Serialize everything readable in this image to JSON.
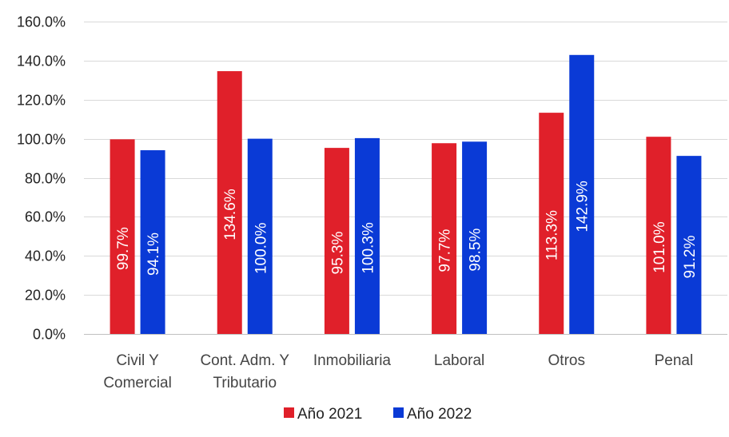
{
  "chart_data": {
    "type": "bar",
    "categories": [
      [
        "Civil Y",
        "Comercial"
      ],
      [
        "Cont. Adm. Y",
        "Tributario"
      ],
      [
        "Inmobiliaria"
      ],
      [
        "Laboral"
      ],
      [
        "Otros"
      ],
      [
        "Penal"
      ]
    ],
    "series": [
      {
        "name": "Año 2021",
        "color": "#e0202a",
        "values": [
          99.7,
          134.6,
          95.3,
          97.7,
          113.3,
          101.0
        ],
        "labels": [
          "99.7%",
          "134.6%",
          "95.3%",
          "97.7%",
          "113.3%",
          "101.0%"
        ]
      },
      {
        "name": "Año 2022",
        "color": "#0a3ad6",
        "values": [
          94.1,
          100.0,
          100.3,
          98.5,
          142.9,
          91.2
        ],
        "labels": [
          "94.1%",
          "100.0%",
          "100.3%",
          "98.5%",
          "142.9%",
          "91.2%"
        ]
      }
    ],
    "ylim": [
      0,
      160
    ],
    "yticks": [
      0,
      20,
      40,
      60,
      80,
      100,
      120,
      140,
      160
    ],
    "ytick_labels": [
      "0.0%",
      "20.0%",
      "40.0%",
      "60.0%",
      "80.0%",
      "100.0%",
      "120.0%",
      "140.0%",
      "160.0%"
    ],
    "grid": true,
    "legend_position": "bottom",
    "title": "",
    "xlabel": "",
    "ylabel": ""
  }
}
